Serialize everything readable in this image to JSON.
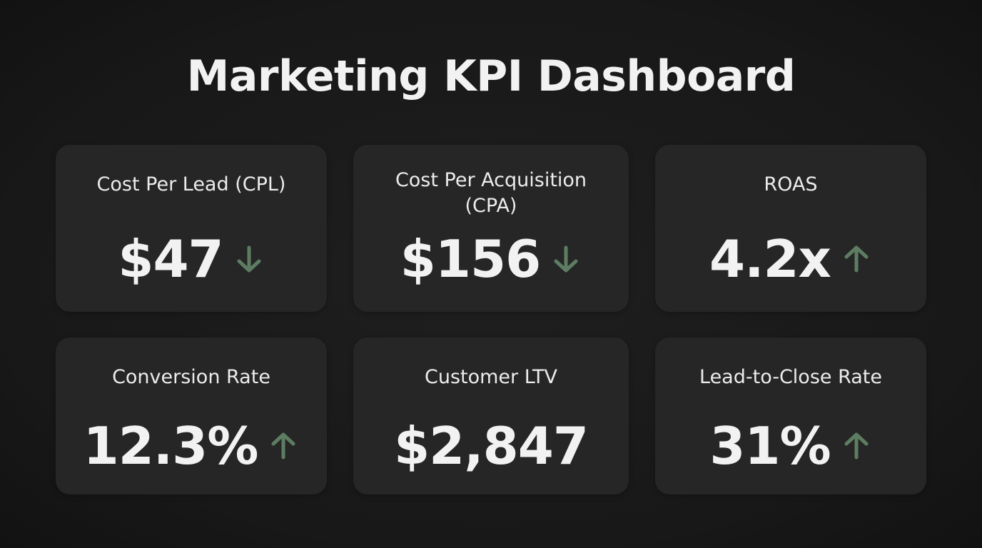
{
  "header": {
    "title": "Marketing KPI Dashboard"
  },
  "cards": [
    {
      "label": "Cost Per Lead (CPL)",
      "value": "$47"
    },
    {
      "label": "Cost Per Acquisition (CPA)",
      "value": "$156"
    },
    {
      "label": "ROAS",
      "value": "4.2x"
    },
    {
      "label": "Conversion Rate",
      "value": "12.3%"
    },
    {
      "label": "Customer LTV",
      "value": "$2,847"
    },
    {
      "label": "Lead-to-Close Rate",
      "value": "31%"
    }
  ]
}
